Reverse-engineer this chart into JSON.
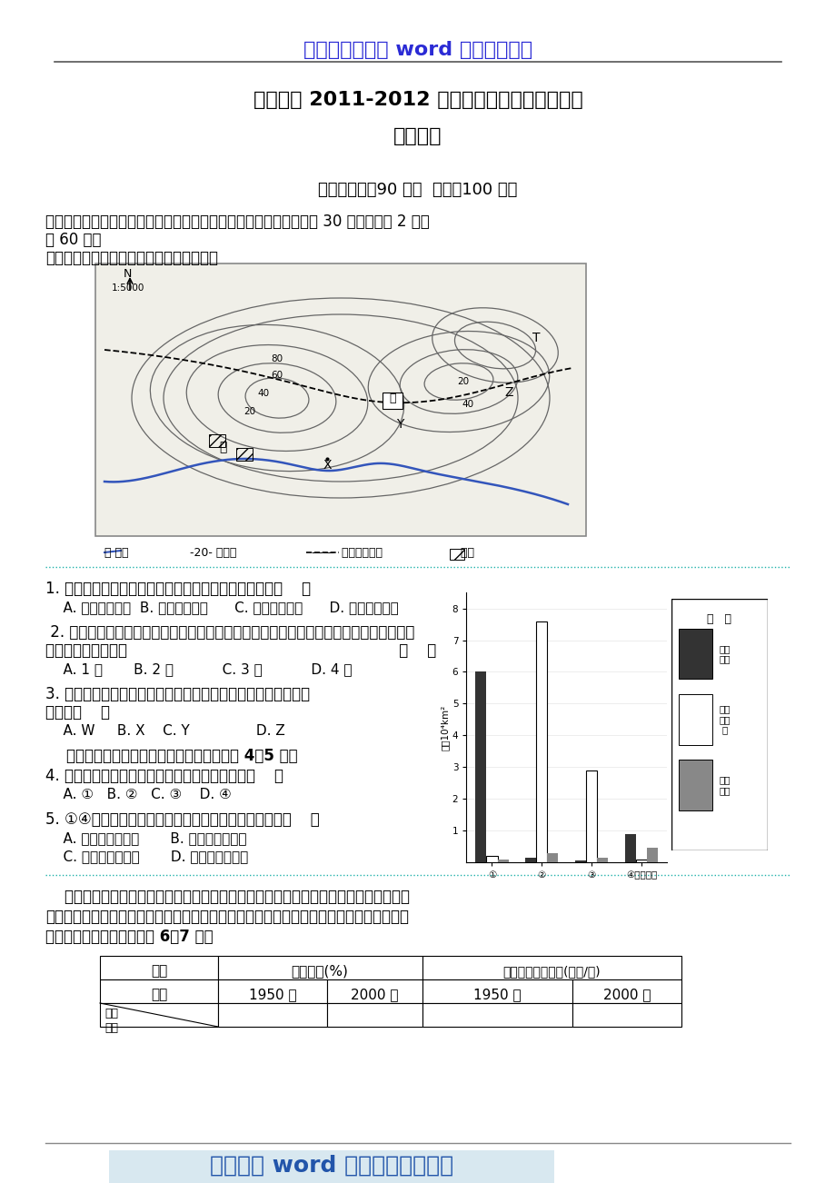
{
  "header_text": "最专业最齐全的 word 文档资料下载",
  "title1": "龙岩一中 2011-2012 学年高二第四学段期末考试",
  "title2": "地理试题",
  "exam_info": "（考试时间：90 分钟  满分：100 分）",
  "section1_a": "一、单项选择题（每题只有一项正确答案，多选、少选均不给分。共 30 题，每小题 2 分，",
  "section1_b": "共 60 分）",
  "map_intro": "下图为某地区等高线地形图，读图回答题。",
  "q1": "1. 根据等高线地形图判断，图中河流的总体流向大致是（    ）",
  "q1a": "    A. 西北向东南流  B. 东南向西北流      C. 东北向西南流      D. 西南向东北流",
  "q2_line1": " 2. 该地区拟建一条铁路，有人设计了一选线方案（如上图）。方案沿线甲、乙、丙、丁四",
  "q2_line2": "处中明显不合理的有                                                         （    ）",
  "q2a": "    A. 1 处       B. 2 处           C. 3 处           D. 4 处",
  "q3": "3. 若要安排露营活动地点，就地形、水文特征判断，最不适宜的",
  "q3b": "地点是（    ）",
  "q3a": "    A. W     B. X    C. Y               D. Z",
  "q4_intro": "    右图是世界各大陆荒漠构成状况，读图回答 4～5 题。",
  "q4": "4. 四大陆中热带荒漠成因与本格拉寒流有关的是（    ）",
  "q4a": "    A. ①   B. ②   C. ③    D. ④",
  "q5": "5. ①④两大陆温带荒漠成因各异，产生差异的主要因素是    ）",
  "q5a": "    A. 大陆面积和轮廓       B. 过度放牧和樵采",
  "q5b": "    C. 纬度位置和垦耕       D. 海陆位置和地形",
  "para1": "    垦殖指数是指一个地区耕地面积占土地总面积的比例，它是衡量一个地区土地资源开发",
  "para2": "利用程度的重要指标，通常以百分数表示。下表为世界及各地区耕地垦殖指数和人均占有耕",
  "para3": "地面积变化表。据表，回答 6～7 题。",
  "footer": "网络平台 word 文档资料下载提供",
  "header_color": "#2B2BD5",
  "footer_color": "#2255aa",
  "separator_color": "#20B2AA",
  "bg_color": "#ffffff",
  "bar_temp": [
    6.0,
    0.15,
    0.05,
    0.9
  ],
  "bar_subtrop": [
    0.2,
    7.6,
    2.9,
    0.1
  ],
  "bar_trop": [
    0.1,
    0.3,
    0.15,
    0.45
  ],
  "bar_categories": [
    "①",
    "②",
    "③",
    "④北美大陆"
  ],
  "bar_legend_labels": [
    "温带\n荒漠",
    "亚热\n带荒\n漠",
    "热带\n荒漠"
  ],
  "bar_ylabel": "单位10⁴km²",
  "bar_legend_title": "图   例"
}
